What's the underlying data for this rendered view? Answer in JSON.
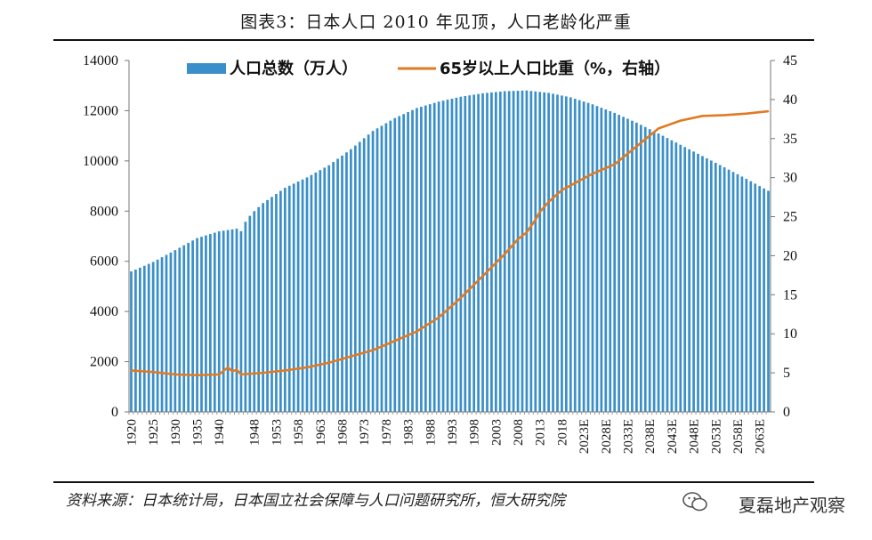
{
  "title": "图表3：日本人口 2010 年见顶，人口老龄化严重",
  "source": "资料来源：日本统计局，日本国立社会保障与人口问题研究所，恒大研究院",
  "watermark": "夏磊地产观察",
  "chart_data": {
    "type": "bar+line",
    "title": "图表3：日本人口 2010 年见顶，人口老龄化严重",
    "legend_position": "top-center",
    "grid": false,
    "colors": {
      "bar": "#3a8fc8",
      "line": "#e07b22"
    },
    "y_left": {
      "ylim": [
        0,
        14000
      ],
      "ticks": [
        0,
        2000,
        4000,
        6000,
        8000,
        10000,
        12000,
        14000
      ]
    },
    "y_right": {
      "ylim": [
        0,
        45
      ],
      "ticks": [
        0,
        5,
        10,
        15,
        20,
        25,
        30,
        35,
        40,
        45
      ]
    },
    "x_range": [
      1920,
      2065
    ],
    "x_tick_labels": [
      "1920",
      "1925",
      "1930",
      "1935",
      "1940",
      "1948",
      "1953",
      "1958",
      "1963",
      "1968",
      "1973",
      "1978",
      "1983",
      "1988",
      "1993",
      "1998",
      "2003",
      "2008",
      "2013",
      "2018",
      "2023E",
      "2028E",
      "2033E",
      "2038E",
      "2043E",
      "2048E",
      "2053E",
      "2058E",
      "2063E"
    ],
    "series": [
      {
        "name": "人口总数（万人）",
        "type": "bar",
        "axis": "left",
        "points": [
          [
            1920,
            5596
          ],
          [
            1925,
            5974
          ],
          [
            1930,
            6445
          ],
          [
            1935,
            6925
          ],
          [
            1940,
            7193
          ],
          [
            1944,
            7300
          ],
          [
            1945,
            7200
          ],
          [
            1946,
            7575
          ],
          [
            1947,
            7810
          ],
          [
            1948,
            8000
          ],
          [
            1950,
            8320
          ],
          [
            1955,
            8928
          ],
          [
            1960,
            9342
          ],
          [
            1965,
            9828
          ],
          [
            1970,
            10467
          ],
          [
            1975,
            11194
          ],
          [
            1980,
            11706
          ],
          [
            1985,
            12105
          ],
          [
            1990,
            12361
          ],
          [
            1995,
            12557
          ],
          [
            2000,
            12693
          ],
          [
            2005,
            12777
          ],
          [
            2010,
            12806
          ],
          [
            2015,
            12710
          ],
          [
            2020,
            12532
          ],
          [
            2025,
            12254
          ],
          [
            2030,
            11913
          ],
          [
            2035,
            11522
          ],
          [
            2040,
            11092
          ],
          [
            2045,
            10642
          ],
          [
            2050,
            10192
          ],
          [
            2055,
            9744
          ],
          [
            2060,
            9284
          ],
          [
            2065,
            8808
          ]
        ]
      },
      {
        "name": "65岁以上人口比重（%，右轴）",
        "type": "line",
        "axis": "right",
        "points": [
          [
            1920,
            5.3
          ],
          [
            1925,
            5.1
          ],
          [
            1930,
            4.8
          ],
          [
            1935,
            4.7
          ],
          [
            1940,
            4.8
          ],
          [
            1942,
            5.7
          ],
          [
            1943,
            5.2
          ],
          [
            1944,
            5.4
          ],
          [
            1945,
            4.8
          ],
          [
            1950,
            5.0
          ],
          [
            1955,
            5.3
          ],
          [
            1960,
            5.7
          ],
          [
            1965,
            6.3
          ],
          [
            1970,
            7.1
          ],
          [
            1975,
            7.9
          ],
          [
            1980,
            9.1
          ],
          [
            1985,
            10.3
          ],
          [
            1990,
            12.1
          ],
          [
            1995,
            14.6
          ],
          [
            2000,
            17.4
          ],
          [
            2005,
            20.2
          ],
          [
            2008,
            22.1
          ],
          [
            2010,
            23.0
          ],
          [
            2012,
            24.6
          ],
          [
            2013,
            25.6
          ],
          [
            2015,
            26.9
          ],
          [
            2018,
            28.4
          ],
          [
            2020,
            29.0
          ],
          [
            2025,
            30.5
          ],
          [
            2030,
            31.7
          ],
          [
            2035,
            34.0
          ],
          [
            2040,
            36.3
          ],
          [
            2045,
            37.3
          ],
          [
            2050,
            37.9
          ],
          [
            2055,
            38.0
          ],
          [
            2060,
            38.2
          ],
          [
            2065,
            38.5
          ]
        ]
      }
    ]
  }
}
